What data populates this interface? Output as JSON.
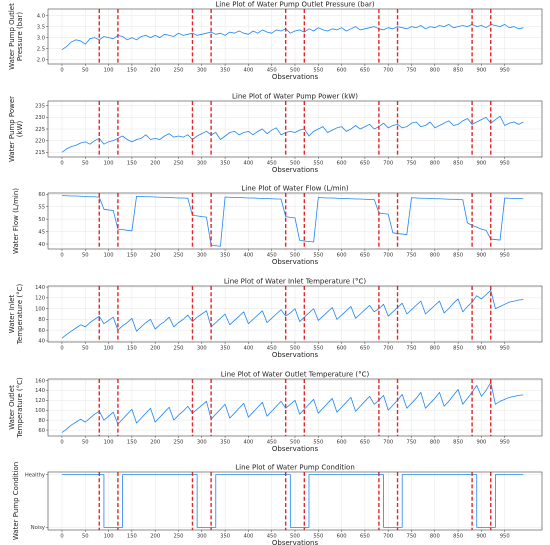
{
  "chart_data": [
    {
      "type": "line",
      "title": "Line Plot of Water Pump Outlet Pressure (bar)",
      "xlabel": "Observations",
      "ylabel": [
        "Water Pump Outlet",
        "Pressure (bar)"
      ],
      "xlim": [
        -30,
        1030
      ],
      "ylim": [
        1.8,
        4.3
      ],
      "xticks": [
        0,
        50,
        100,
        150,
        200,
        250,
        300,
        350,
        400,
        450,
        500,
        550,
        600,
        650,
        700,
        750,
        800,
        850,
        900,
        950
      ],
      "yticks": [
        2.0,
        2.5,
        3.0,
        3.5,
        4.0
      ],
      "ytick_labels": [
        "2.0",
        "2.5",
        "3.0",
        "3.5",
        "4.0"
      ],
      "grid": true,
      "vlines": [
        80,
        120,
        280,
        320,
        480,
        520,
        680,
        720,
        880,
        920
      ],
      "series": [
        {
          "x_start": 0,
          "x_step": 10,
          "values": [
            2.45,
            2.6,
            2.8,
            2.9,
            2.85,
            2.7,
            2.95,
            3.0,
            2.9,
            3.05,
            3.0,
            2.95,
            3.1,
            3.05,
            2.9,
            3.0,
            2.9,
            3.05,
            3.1,
            3.0,
            3.1,
            3.0,
            3.15,
            3.1,
            3.05,
            3.2,
            3.1,
            3.15,
            3.2,
            3.1,
            3.15,
            3.2,
            3.25,
            3.15,
            3.2,
            3.1,
            3.25,
            3.2,
            3.3,
            3.2,
            3.15,
            3.3,
            3.2,
            3.35,
            3.25,
            3.2,
            3.35,
            3.3,
            3.4,
            3.2,
            3.3,
            3.35,
            3.25,
            3.4,
            3.3,
            3.45,
            3.35,
            3.3,
            3.4,
            3.35,
            3.45,
            3.3,
            3.4,
            3.5,
            3.35,
            3.4,
            3.45,
            3.5,
            3.4,
            3.35,
            3.45,
            3.4,
            3.5,
            3.45,
            3.4,
            3.5,
            3.45,
            3.55,
            3.4,
            3.5,
            3.45,
            3.55,
            3.5,
            3.6,
            3.45,
            3.5,
            3.55,
            3.5,
            3.6,
            3.5,
            3.55,
            3.45,
            3.6,
            3.55,
            3.5,
            3.6,
            3.45,
            3.5,
            3.4,
            3.45
          ]
        }
      ]
    },
    {
      "type": "line",
      "title": "Line Plot of Water Pump Power (kW)",
      "xlabel": "Observations",
      "ylabel": [
        "Water Pump Power",
        "(kW)"
      ],
      "xlim": [
        -30,
        1030
      ],
      "ylim": [
        213,
        237
      ],
      "xticks": [
        0,
        50,
        100,
        150,
        200,
        250,
        300,
        350,
        400,
        450,
        500,
        550,
        600,
        650,
        700,
        750,
        800,
        850,
        900,
        950
      ],
      "yticks": [
        215,
        220,
        225,
        230,
        235
      ],
      "ytick_labels": [
        "215",
        "220",
        "225",
        "230",
        "235"
      ],
      "grid": true,
      "vlines": [
        80,
        120,
        280,
        320,
        480,
        520,
        680,
        720,
        880,
        920
      ],
      "series": [
        {
          "x_start": 0,
          "x_step": 10,
          "values": [
            215,
            216.5,
            217.5,
            218,
            219,
            219.5,
            218.5,
            220,
            221,
            218.5,
            219.5,
            220,
            221,
            222,
            220.5,
            219.5,
            220.5,
            221,
            222.5,
            220.5,
            221,
            220.5,
            222,
            223,
            221.5,
            222,
            221.5,
            222.5,
            220.5,
            222,
            223,
            224,
            222.5,
            223.5,
            220.5,
            222,
            223.5,
            224,
            222.5,
            223.5,
            224,
            222.5,
            224,
            225,
            223,
            224.5,
            225.5,
            222.5,
            223.5,
            224,
            223.5,
            224.5,
            225,
            222,
            224,
            225,
            226,
            223.5,
            224.5,
            225.5,
            226,
            224,
            225,
            226.5,
            225,
            226,
            227,
            225,
            226,
            227.5,
            225.5,
            226.5,
            227,
            225.5,
            226,
            227.5,
            228,
            226,
            226.5,
            228,
            225.5,
            226.5,
            227.5,
            228.5,
            226.5,
            227,
            228.5,
            229.5,
            227,
            228,
            229,
            230,
            227.5,
            229,
            230.5,
            226.5,
            227.5,
            228,
            227,
            228
          ]
        }
      ]
    },
    {
      "type": "line",
      "title": "Line Plot of Water Flow (L/min)",
      "xlabel": "Observations",
      "ylabel": [
        "Water Flow (L/min)"
      ],
      "xlim": [
        -30,
        1030
      ],
      "ylim": [
        38,
        60.5
      ],
      "xticks": [
        0,
        50,
        100,
        150,
        200,
        250,
        300,
        350,
        400,
        450,
        500,
        550,
        600,
        650,
        700,
        750,
        800,
        850,
        900,
        950
      ],
      "yticks": [
        40,
        45,
        50,
        55,
        60
      ],
      "ytick_labels": [
        "40",
        "45",
        "50",
        "55",
        "60"
      ],
      "grid": true,
      "vlines": [
        80,
        120,
        280,
        320,
        480,
        520,
        680,
        720,
        880,
        920
      ],
      "series": [
        {
          "x_start": 0,
          "x_step": 10,
          "values": [
            59.5,
            59.4,
            59.3,
            59.3,
            59.2,
            59.1,
            59.0,
            59.0,
            58.8,
            54.0,
            53.7,
            53.5,
            46.0,
            45.8,
            45.5,
            45.3,
            59.2,
            59.1,
            59.0,
            59.0,
            58.9,
            58.8,
            58.8,
            58.7,
            58.6,
            58.5,
            58.5,
            58.4,
            51.5,
            51.3,
            51.0,
            50.8,
            39.5,
            39.3,
            39.1,
            58.9,
            58.8,
            58.7,
            58.7,
            58.6,
            58.5,
            58.5,
            58.4,
            58.3,
            58.3,
            58.2,
            58.1,
            58.1,
            51.0,
            50.7,
            50.5,
            41.5,
            41.2,
            41.0,
            40.8,
            58.7,
            58.6,
            58.5,
            58.5,
            58.4,
            58.3,
            58.3,
            58.2,
            58.1,
            58.1,
            58.0,
            57.9,
            57.9,
            52.5,
            52.2,
            52.0,
            44.5,
            44.2,
            44.0,
            43.8,
            58.6,
            58.5,
            58.4,
            58.4,
            58.3,
            58.2,
            58.2,
            58.1,
            58.0,
            58.0,
            57.9,
            57.8,
            48.5,
            47.5,
            46.8,
            46.0,
            45.5,
            42.0,
            41.8,
            41.6,
            58.5,
            58.4,
            58.3,
            58.3,
            58.2
          ]
        }
      ]
    },
    {
      "type": "line",
      "title": "Line Plot of Water Inlet Temperature (°C)",
      "xlabel": "Observations",
      "ylabel": [
        "Water Inlet",
        "Temperature (°C)"
      ],
      "xlim": [
        -30,
        1030
      ],
      "ylim": [
        38,
        142
      ],
      "xticks": [
        0,
        50,
        100,
        150,
        200,
        250,
        300,
        350,
        400,
        450,
        500,
        550,
        600,
        650,
        700,
        750,
        800,
        850,
        900,
        950
      ],
      "yticks": [
        40,
        60,
        80,
        100,
        120,
        140
      ],
      "ytick_labels": [
        "40",
        "60",
        "80",
        "100",
        "120",
        "140"
      ],
      "grid": true,
      "vlines": [
        80,
        120,
        280,
        320,
        480,
        520,
        680,
        720,
        880,
        920
      ],
      "series": [
        {
          "x_start": 0,
          "x_step": 10,
          "values": [
            45,
            52,
            58,
            64,
            70,
            66,
            74,
            80,
            86,
            72,
            78,
            84,
            60,
            68,
            74,
            82,
            58,
            66,
            74,
            80,
            62,
            70,
            76,
            84,
            66,
            74,
            80,
            88,
            76,
            84,
            90,
            96,
            66,
            74,
            82,
            90,
            70,
            78,
            86,
            94,
            72,
            80,
            88,
            96,
            74,
            82,
            90,
            98,
            86,
            92,
            100,
            76,
            84,
            92,
            100,
            78,
            86,
            94,
            102,
            80,
            88,
            96,
            104,
            82,
            90,
            98,
            106,
            94,
            100,
            108,
            86,
            94,
            102,
            110,
            90,
            98,
            106,
            114,
            90,
            98,
            106,
            114,
            92,
            100,
            110,
            118,
            94,
            104,
            112,
            124,
            118,
            126,
            134,
            100,
            104,
            108,
            112,
            114,
            116,
            117
          ]
        }
      ]
    },
    {
      "type": "line",
      "title": "Line Plot of Water Outlet Temperature (°C)",
      "xlabel": "Observations",
      "ylabel": [
        "Water Outlet",
        "Temperature (°C)"
      ],
      "xlim": [
        -30,
        1030
      ],
      "ylim": [
        48,
        163
      ],
      "xticks": [
        0,
        50,
        100,
        150,
        200,
        250,
        300,
        350,
        400,
        450,
        500,
        550,
        600,
        650,
        700,
        750,
        800,
        850,
        900,
        950
      ],
      "yticks": [
        60,
        80,
        100,
        120,
        140,
        160
      ],
      "ytick_labels": [
        "60",
        "80",
        "100",
        "120",
        "140",
        "160"
      ],
      "grid": true,
      "vlines": [
        80,
        120,
        280,
        320,
        480,
        520,
        680,
        720,
        880,
        920
      ],
      "series": [
        {
          "x_start": 0,
          "x_step": 10,
          "values": [
            55,
            62,
            70,
            76,
            82,
            76,
            84,
            92,
            98,
            80,
            88,
            96,
            72,
            82,
            92,
            102,
            74,
            84,
            94,
            104,
            76,
            86,
            96,
            106,
            80,
            90,
            98,
            108,
            94,
            102,
            110,
            118,
            82,
            92,
            102,
            112,
            84,
            94,
            104,
            114,
            86,
            96,
            106,
            116,
            88,
            98,
            108,
            118,
            104,
            112,
            120,
            92,
            102,
            112,
            122,
            94,
            104,
            114,
            124,
            96,
            106,
            116,
            126,
            98,
            108,
            118,
            128,
            112,
            120,
            130,
            100,
            110,
            120,
            132,
            104,
            114,
            124,
            136,
            104,
            114,
            124,
            136,
            108,
            118,
            130,
            142,
            112,
            124,
            136,
            150,
            128,
            140,
            156,
            112,
            118,
            122,
            126,
            128,
            130,
            131
          ]
        }
      ]
    },
    {
      "type": "line",
      "title": "Line Plot of Water Pump Condition",
      "xlabel": "Observations",
      "ylabel": [
        "Water Pump Condition"
      ],
      "xlim": [
        -30,
        1030
      ],
      "ylim": [
        -0.05,
        1.05
      ],
      "xticks": [
        0,
        50,
        100,
        150,
        200,
        250,
        300,
        350,
        400,
        450,
        500,
        550,
        600,
        650,
        700,
        750,
        800,
        850,
        900,
        950
      ],
      "yticks": [
        0,
        1
      ],
      "ytick_labels": [
        "Noisy",
        "Healthy"
      ],
      "grid": true,
      "vlines": [
        80,
        120,
        280,
        320,
        480,
        520,
        680,
        720,
        880,
        920
      ],
      "series": [
        {
          "x_start": 0,
          "x_step": 10,
          "values": [
            1,
            1,
            1,
            1,
            1,
            1,
            1,
            1,
            1,
            0,
            0,
            0,
            0,
            1,
            1,
            1,
            1,
            1,
            1,
            1,
            1,
            1,
            1,
            1,
            1,
            1,
            1,
            1,
            1,
            0,
            0,
            0,
            0,
            1,
            1,
            1,
            1,
            1,
            1,
            1,
            1,
            1,
            1,
            1,
            1,
            1,
            1,
            1,
            1,
            0,
            0,
            0,
            0,
            1,
            1,
            1,
            1,
            1,
            1,
            1,
            1,
            1,
            1,
            1,
            1,
            1,
            1,
            1,
            1,
            0,
            0,
            0,
            0,
            1,
            1,
            1,
            1,
            1,
            1,
            1,
            1,
            1,
            1,
            1,
            1,
            1,
            1,
            1,
            1,
            0,
            0,
            0,
            0,
            1,
            1,
            1,
            1,
            1,
            1,
            1
          ]
        }
      ]
    }
  ]
}
